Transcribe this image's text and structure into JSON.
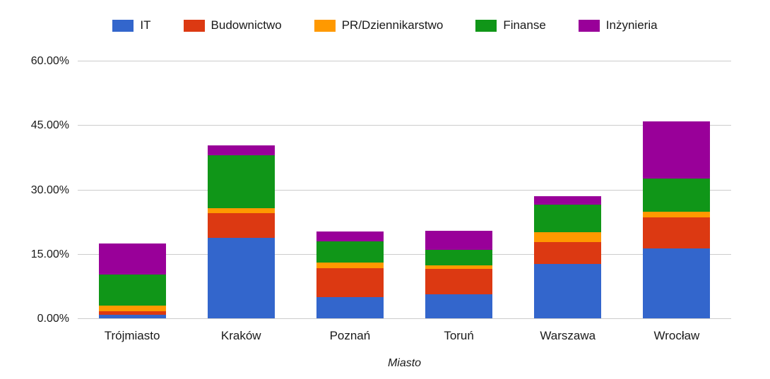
{
  "chart_data": {
    "type": "bar",
    "stacked": true,
    "title": "",
    "xlabel": "Miasto",
    "ylabel": "",
    "ylim": [
      0,
      60
    ],
    "yticks": [
      "0.00%",
      "15.00%",
      "30.00%",
      "45.00%",
      "60.00%"
    ],
    "grid": true,
    "legend_position": "top",
    "categories": [
      "Trójmiasto",
      "Kraków",
      "Poznań",
      "Toruń",
      "Warszawa",
      "Wrocław"
    ],
    "series": [
      {
        "name": "IT",
        "color": "#3366CC",
        "values": [
          0.8,
          18.8,
          5.0,
          5.6,
          12.7,
          16.3
        ]
      },
      {
        "name": "Budownictwo",
        "color": "#DC3912",
        "values": [
          0.9,
          5.7,
          6.7,
          5.9,
          5.1,
          7.2
        ]
      },
      {
        "name": "PR/Dziennikarstwo",
        "color": "#FF9900",
        "values": [
          1.2,
          1.1,
          1.3,
          0.8,
          2.2,
          1.3
        ]
      },
      {
        "name": "Finanse",
        "color": "#109618",
        "values": [
          7.3,
          12.4,
          5.0,
          3.6,
          6.5,
          7.7
        ]
      },
      {
        "name": "Inżynieria",
        "color": "#990099",
        "values": [
          7.3,
          2.3,
          2.3,
          4.5,
          2.0,
          13.4
        ]
      }
    ],
    "gridline_color": "#cccccc"
  }
}
